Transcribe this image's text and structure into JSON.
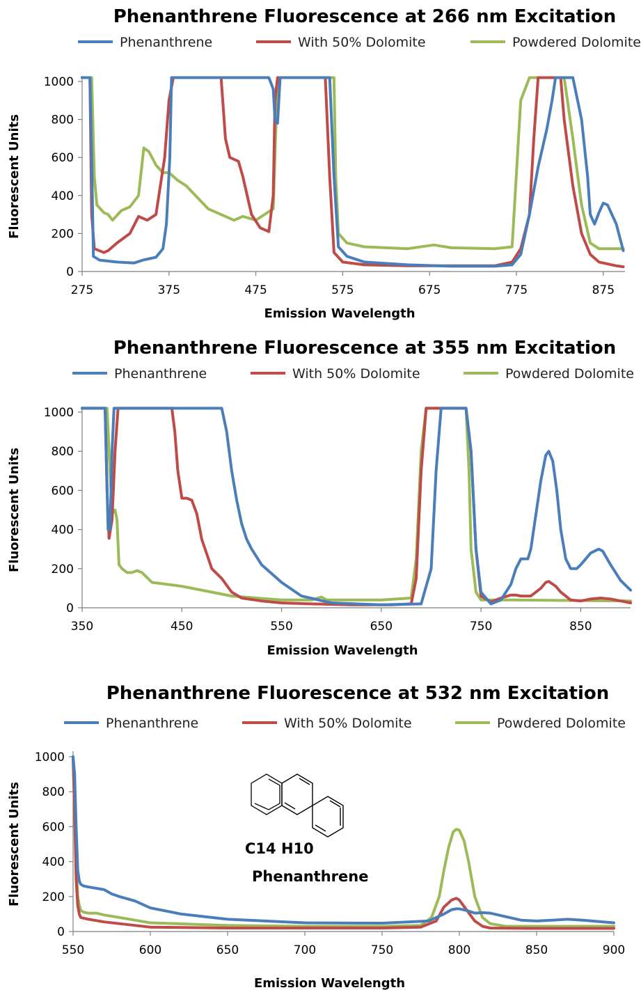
{
  "chart_data": [
    {
      "type": "line",
      "title": "Phenanthrene Fluorescence at 266 nm Excitation",
      "xlabel": "Emission Wavelength",
      "ylabel": "Fluorescent Units",
      "xlim": [
        275,
        900
      ],
      "ylim": [
        0,
        1000
      ],
      "xticks": [
        275,
        375,
        475,
        575,
        675,
        775,
        875
      ],
      "yticks": [
        0,
        200,
        400,
        600,
        800,
        1000
      ],
      "legend": "top",
      "grid": false,
      "series": [
        {
          "name": "Phenanthrene",
          "color": "#4a7ebb",
          "x": [
            275,
            282,
            284,
            286,
            288,
            295,
            315,
            335,
            345,
            360,
            368,
            372,
            376,
            378,
            385,
            420,
            470,
            490,
            495,
            497,
            500,
            503,
            510,
            545,
            560,
            565,
            570,
            580,
            600,
            650,
            700,
            750,
            770,
            780,
            790,
            800,
            810,
            816,
            820,
            826,
            830,
            840,
            850,
            857,
            860,
            865,
            870,
            875,
            880,
            890,
            898
          ],
          "y": [
            1020,
            1020,
            1020,
            600,
            80,
            60,
            50,
            45,
            60,
            75,
            120,
            250,
            600,
            1020,
            1020,
            1020,
            1020,
            1020,
            960,
            800,
            780,
            1020,
            1020,
            1020,
            1020,
            500,
            130,
            80,
            50,
            35,
            28,
            28,
            35,
            90,
            300,
            550,
            750,
            900,
            1020,
            1020,
            1020,
            1020,
            800,
            500,
            300,
            250,
            310,
            360,
            350,
            250,
            110
          ]
        },
        {
          "name": "With 50% Dolomite",
          "color": "#be4b48",
          "x": [
            275,
            282,
            284,
            286,
            289,
            300,
            305,
            315,
            330,
            340,
            350,
            360,
            370,
            375,
            380,
            386,
            392,
            400,
            420,
            430,
            435,
            440,
            445,
            455,
            460,
            470,
            480,
            490,
            495,
            497,
            500,
            503,
            510,
            545,
            555,
            560,
            565,
            575,
            600,
            650,
            700,
            750,
            770,
            780,
            790,
            795,
            800,
            810,
            820,
            826,
            830,
            840,
            850,
            860,
            870,
            880,
            890,
            898
          ],
          "y": [
            1020,
            1020,
            1020,
            300,
            120,
            100,
            110,
            150,
            200,
            290,
            270,
            300,
            600,
            900,
            1020,
            1020,
            1020,
            1020,
            1020,
            1020,
            1020,
            700,
            600,
            580,
            500,
            300,
            230,
            210,
            400,
            900,
            1020,
            1020,
            1020,
            1020,
            1020,
            500,
            100,
            50,
            35,
            30,
            30,
            30,
            50,
            120,
            300,
            700,
            1020,
            1020,
            1020,
            1020,
            800,
            450,
            200,
            90,
            50,
            40,
            30,
            25
          ]
        },
        {
          "name": "Powdered Dolomite",
          "color": "#9bbb59",
          "x": [
            275,
            282,
            286,
            289,
            292,
            300,
            305,
            310,
            320,
            330,
            340,
            346,
            352,
            360,
            368,
            375,
            385,
            395,
            420,
            450,
            460,
            475,
            495,
            500,
            505,
            510,
            520,
            565,
            567,
            570,
            580,
            600,
            650,
            680,
            700,
            750,
            770,
            780,
            790,
            795,
            800,
            810,
            830,
            840,
            850,
            860,
            870,
            898
          ],
          "y": [
            1020,
            1020,
            1020,
            500,
            350,
            310,
            300,
            270,
            320,
            340,
            400,
            650,
            630,
            560,
            520,
            520,
            480,
            450,
            330,
            270,
            290,
            270,
            330,
            1020,
            1020,
            1020,
            1020,
            1020,
            500,
            200,
            150,
            130,
            120,
            140,
            125,
            120,
            130,
            900,
            1020,
            1020,
            1020,
            1020,
            1020,
            700,
            350,
            150,
            120,
            120
          ]
        }
      ]
    },
    {
      "type": "line",
      "title": "Phenanthrene Fluorescence at 355 nm Excitation",
      "xlabel": "Emission Wavelength",
      "ylabel": "Fluorescent Units",
      "xlim": [
        350,
        900
      ],
      "ylim": [
        0,
        1000
      ],
      "xticks": [
        350,
        450,
        550,
        650,
        750,
        850
      ],
      "yticks": [
        0,
        200,
        400,
        600,
        800,
        1000
      ],
      "legend": "top",
      "grid": false,
      "series": [
        {
          "name": "Phenanthrene",
          "color": "#4a7ebb",
          "x": [
            350,
            370,
            373,
            376,
            378,
            380,
            382,
            385,
            420,
            480,
            490,
            495,
            500,
            505,
            510,
            515,
            520,
            530,
            550,
            570,
            600,
            650,
            690,
            700,
            705,
            710,
            715,
            720,
            725,
            730,
            735,
            740,
            745,
            750,
            760,
            770,
            780,
            785,
            790,
            797,
            800,
            810,
            815,
            818,
            822,
            826,
            830,
            835,
            840,
            846,
            850,
            855,
            860,
            868,
            872,
            880,
            890,
            900
          ],
          "y": [
            1020,
            1020,
            1020,
            400,
            400,
            800,
            1020,
            1020,
            1020,
            1020,
            1020,
            900,
            700,
            550,
            430,
            350,
            300,
            220,
            130,
            60,
            25,
            15,
            20,
            200,
            700,
            1020,
            1020,
            1020,
            1020,
            1020,
            1020,
            800,
            300,
            80,
            20,
            40,
            120,
            200,
            250,
            250,
            300,
            650,
            780,
            800,
            750,
            600,
            400,
            250,
            200,
            200,
            220,
            250,
            280,
            300,
            290,
            220,
            140,
            90
          ]
        },
        {
          "name": "With 50% Dolomite",
          "color": "#be4b48",
          "x": [
            350,
            370,
            373,
            375,
            377,
            380,
            383,
            386,
            390,
            430,
            440,
            443,
            446,
            450,
            455,
            460,
            465,
            470,
            480,
            490,
            500,
            510,
            530,
            550,
            580,
            620,
            660,
            680,
            685,
            690,
            695,
            700,
            730,
            735,
            740,
            745,
            750,
            760,
            770,
            780,
            785,
            790,
            800,
            810,
            815,
            818,
            825,
            830,
            840,
            850,
            860,
            870,
            880,
            890,
            900
          ],
          "y": [
            1020,
            1020,
            1020,
            600,
            355,
            450,
            800,
            1020,
            1020,
            1020,
            1020,
            900,
            700,
            560,
            560,
            550,
            480,
            350,
            200,
            150,
            80,
            50,
            35,
            25,
            20,
            15,
            15,
            20,
            150,
            700,
            1020,
            1020,
            1020,
            1020,
            800,
            300,
            60,
            30,
            50,
            65,
            65,
            60,
            60,
            100,
            130,
            135,
            110,
            80,
            40,
            35,
            45,
            50,
            45,
            35,
            25
          ]
        },
        {
          "name": "Powdered Dolomite",
          "color": "#9bbb59",
          "x": [
            350,
            370,
            375,
            380,
            383,
            385,
            387,
            390,
            395,
            400,
            405,
            410,
            420,
            450,
            500,
            550,
            580,
            590,
            595,
            600,
            650,
            680,
            685,
            690,
            695,
            700,
            730,
            735,
            738,
            740,
            745,
            750,
            760,
            780,
            900
          ],
          "y": [
            1020,
            1020,
            1020,
            480,
            500,
            450,
            220,
            200,
            180,
            180,
            190,
            180,
            130,
            110,
            60,
            40,
            40,
            55,
            40,
            40,
            40,
            50,
            250,
            800,
            1020,
            1020,
            1020,
            1020,
            700,
            300,
            80,
            40,
            40,
            40,
            35
          ]
        }
      ]
    },
    {
      "type": "line",
      "title": "Phenanthrene Fluorescence at 532 nm Excitation",
      "xlabel": "Emission Wavelength",
      "ylabel": "Fluorescent Units",
      "xlim": [
        550,
        900
      ],
      "ylim": [
        0,
        1000
      ],
      "xticks": [
        550,
        600,
        650,
        700,
        750,
        800,
        850,
        900
      ],
      "yticks": [
        0,
        200,
        400,
        600,
        800,
        1000
      ],
      "legend": "top",
      "grid": false,
      "series": [
        {
          "name": "Phenanthrene",
          "color": "#4a7ebb",
          "x": [
            550,
            551,
            552,
            553,
            554,
            555,
            557,
            560,
            570,
            575,
            580,
            590,
            600,
            620,
            650,
            700,
            750,
            780,
            790,
            795,
            798,
            800,
            805,
            810,
            815,
            820,
            830,
            840,
            850,
            860,
            870,
            880,
            900
          ],
          "y": [
            1000,
            900,
            600,
            350,
            290,
            270,
            260,
            255,
            240,
            215,
            200,
            175,
            135,
            100,
            70,
            50,
            48,
            60,
            100,
            125,
            130,
            130,
            120,
            105,
            108,
            105,
            85,
            65,
            60,
            65,
            70,
            65,
            50
          ]
        },
        {
          "name": "With 50% Dolomite",
          "color": "#be4b48",
          "x": [
            550,
            551,
            552,
            553,
            554,
            555,
            560,
            570,
            580,
            600,
            650,
            700,
            750,
            775,
            785,
            790,
            795,
            798,
            800,
            805,
            810,
            815,
            820,
            850,
            900
          ],
          "y": [
            1000,
            700,
            300,
            150,
            100,
            80,
            70,
            55,
            45,
            25,
            20,
            20,
            20,
            25,
            60,
            140,
            180,
            190,
            180,
            120,
            60,
            30,
            20,
            18,
            18
          ]
        },
        {
          "name": "Powdered Dolomite",
          "color": "#9bbb59",
          "x": [
            550,
            551,
            552,
            553,
            554,
            555,
            557,
            560,
            565,
            570,
            580,
            590,
            600,
            650,
            700,
            750,
            775,
            782,
            787,
            790,
            793,
            796,
            798,
            800,
            803,
            806,
            810,
            815,
            820,
            830,
            850,
            900
          ],
          "y": [
            1000,
            700,
            400,
            200,
            150,
            120,
            110,
            105,
            105,
            95,
            80,
            65,
            50,
            35,
            30,
            30,
            35,
            80,
            200,
            350,
            480,
            570,
            585,
            580,
            520,
            400,
            200,
            80,
            45,
            30,
            30,
            30
          ]
        }
      ]
    }
  ],
  "annotation": {
    "formula": "C14 H10",
    "name": "Phenanthrene"
  }
}
